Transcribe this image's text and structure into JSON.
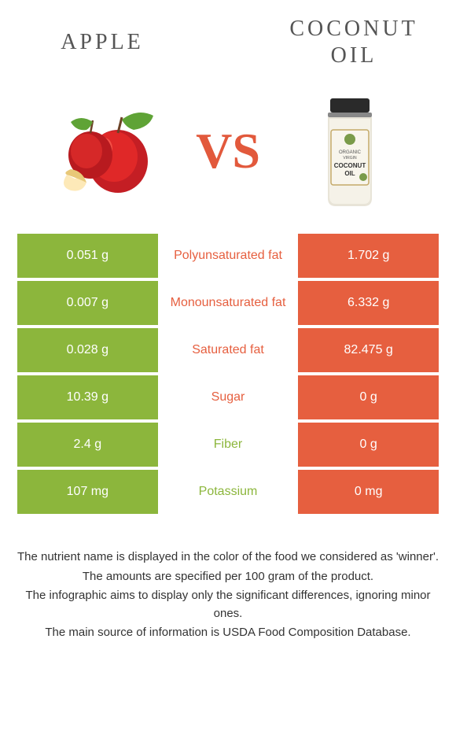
{
  "titles": {
    "left": "APPLE",
    "right": "COCONUT OIL"
  },
  "vs_label": "VS",
  "colors": {
    "left_bg": "#8cb63c",
    "right_bg": "#e65f3f",
    "winner_left_text": "#8cb63c",
    "winner_right_text": "#e65f3f"
  },
  "rows": [
    {
      "left": "0.051 g",
      "label": "Polyunsaturated fat",
      "right": "1.702 g",
      "winner": "right"
    },
    {
      "left": "0.007 g",
      "label": "Monounsaturated fat",
      "right": "6.332 g",
      "winner": "right"
    },
    {
      "left": "0.028 g",
      "label": "Saturated fat",
      "right": "82.475 g",
      "winner": "right"
    },
    {
      "left": "10.39 g",
      "label": "Sugar",
      "right": "0 g",
      "winner": "right"
    },
    {
      "left": "2.4 g",
      "label": "Fiber",
      "right": "0 g",
      "winner": "left"
    },
    {
      "left": "107 mg",
      "label": "Potassium",
      "right": "0 mg",
      "winner": "left"
    }
  ],
  "footer": [
    "The nutrient name is displayed in the color of the food we considered as 'winner'.",
    "The amounts are specified per 100 gram of the product.",
    "The infographic aims to display only the significant differences, ignoring minor ones.",
    "The main source of information is USDA Food Composition Database."
  ]
}
